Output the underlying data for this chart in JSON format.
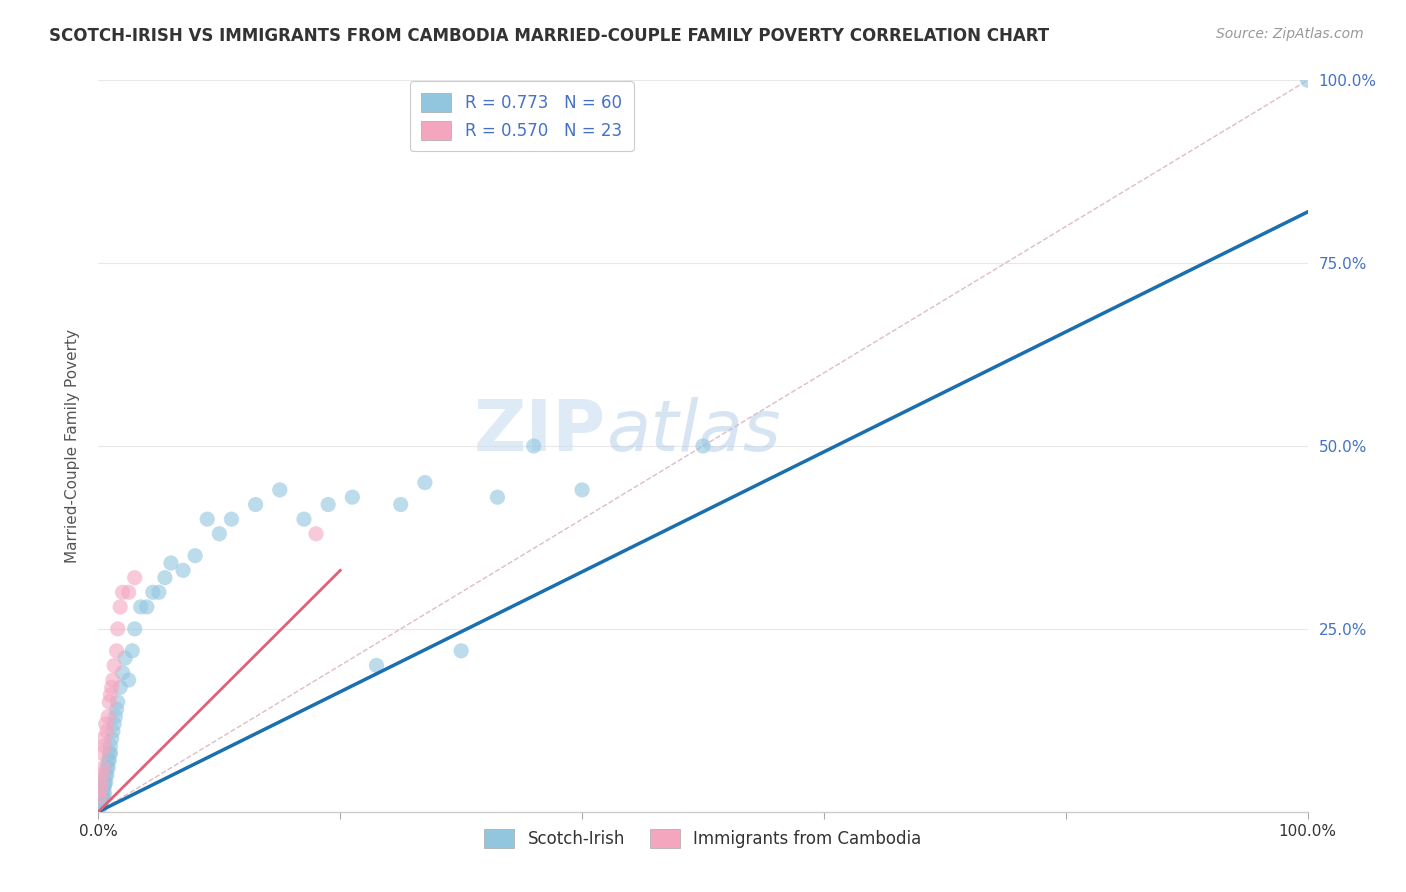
{
  "title": "SCOTCH-IRISH VS IMMIGRANTS FROM CAMBODIA MARRIED-COUPLE FAMILY POVERTY CORRELATION CHART",
  "source": "Source: ZipAtlas.com",
  "ylabel": "Married-Couple Family Poverty",
  "legend_label1": "Scotch-Irish",
  "legend_label2": "Immigrants from Cambodia",
  "R1": 0.773,
  "N1": 60,
  "R2": 0.57,
  "N2": 23,
  "color1": "#92c5de",
  "color2": "#f4a6be",
  "line_color1": "#1a6faf",
  "line_color2": "#e0607a",
  "diagonal_color": "#d0a0b0",
  "xlim": [
    0,
    1
  ],
  "ylim": [
    0,
    1
  ],
  "right_ytick_vals": [
    0.25,
    0.5,
    0.75,
    1.0
  ],
  "right_ytick_labels": [
    "25.0%",
    "50.0%",
    "75.0%",
    "100.0%"
  ],
  "watermark_zip": "ZIP",
  "watermark_atlas": "atlas",
  "background_color": "#ffffff",
  "grid_color": "#e8e8e8",
  "scotch_irish_x": [
    0.001,
    0.001,
    0.002,
    0.002,
    0.002,
    0.003,
    0.003,
    0.003,
    0.004,
    0.004,
    0.005,
    0.005,
    0.005,
    0.006,
    0.006,
    0.007,
    0.007,
    0.008,
    0.008,
    0.009,
    0.009,
    0.01,
    0.01,
    0.011,
    0.012,
    0.013,
    0.014,
    0.015,
    0.016,
    0.018,
    0.02,
    0.022,
    0.025,
    0.028,
    0.03,
    0.035,
    0.04,
    0.045,
    0.05,
    0.055,
    0.06,
    0.07,
    0.08,
    0.09,
    0.1,
    0.11,
    0.13,
    0.15,
    0.17,
    0.19,
    0.21,
    0.23,
    0.25,
    0.27,
    0.3,
    0.33,
    0.36,
    0.4,
    0.5,
    1.0
  ],
  "scotch_irish_y": [
    0.005,
    0.008,
    0.01,
    0.012,
    0.015,
    0.018,
    0.02,
    0.025,
    0.02,
    0.03,
    0.025,
    0.035,
    0.04,
    0.04,
    0.05,
    0.05,
    0.06,
    0.06,
    0.07,
    0.07,
    0.08,
    0.08,
    0.09,
    0.1,
    0.11,
    0.12,
    0.13,
    0.14,
    0.15,
    0.17,
    0.19,
    0.21,
    0.18,
    0.22,
    0.25,
    0.28,
    0.28,
    0.3,
    0.3,
    0.32,
    0.34,
    0.33,
    0.35,
    0.4,
    0.38,
    0.4,
    0.42,
    0.44,
    0.4,
    0.42,
    0.43,
    0.2,
    0.42,
    0.45,
    0.22,
    0.43,
    0.5,
    0.44,
    0.5,
    1.0
  ],
  "cambodia_x": [
    0.001,
    0.002,
    0.002,
    0.003,
    0.003,
    0.004,
    0.004,
    0.005,
    0.006,
    0.007,
    0.008,
    0.009,
    0.01,
    0.011,
    0.012,
    0.013,
    0.015,
    0.016,
    0.018,
    0.02,
    0.025,
    0.03,
    0.18
  ],
  "cambodia_y": [
    0.02,
    0.03,
    0.04,
    0.05,
    0.08,
    0.06,
    0.1,
    0.09,
    0.12,
    0.11,
    0.13,
    0.15,
    0.16,
    0.17,
    0.18,
    0.2,
    0.22,
    0.25,
    0.28,
    0.3,
    0.3,
    0.32,
    0.38
  ],
  "blue_line_x0": 0.0,
  "blue_line_y0": 0.0,
  "blue_line_x1": 1.0,
  "blue_line_y1": 0.82,
  "pink_line_x0": 0.0,
  "pink_line_y0": 0.0,
  "pink_line_x1": 0.2,
  "pink_line_y1": 0.33
}
